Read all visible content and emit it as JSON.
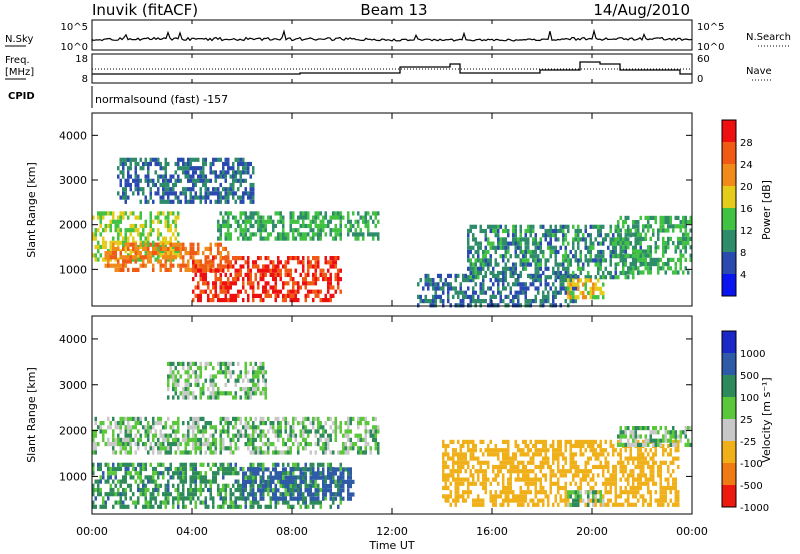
{
  "header": {
    "station": "Inuvik (fitACF)",
    "beam": "Beam 13",
    "date": "14/Aug/2010"
  },
  "nsky_panel": {
    "label": "N.Sky",
    "right_label": "N.Search",
    "left_ticks": [
      "10^5",
      "10^0"
    ],
    "right_ticks": [
      "10^5",
      "10^0"
    ]
  },
  "freq_panel": {
    "label_line1": "Freq.",
    "label_line2": "[MHz]",
    "left_ticks": [
      "18",
      "8"
    ],
    "right_ticks": [
      "60",
      "0"
    ],
    "right_label": "Nave"
  },
  "cpid_panel": {
    "label": "CPID",
    "text": "normalsound (fast) -157"
  },
  "x_axis": {
    "ticks": [
      "00:00",
      "04:00",
      "08:00",
      "12:00",
      "16:00",
      "20:00",
      "00:00"
    ],
    "label": "Time UT"
  },
  "power_panel": {
    "ylabel": "Slant Range [km]",
    "yticks": [
      "4000",
      "3000",
      "2000",
      "1000"
    ],
    "colorbar_label": "Power [dB]",
    "colorbar_ticks": [
      "28",
      "24",
      "20",
      "16",
      "12",
      "8",
      "4"
    ],
    "colors": [
      "#0a14f0",
      "#2a4ab0",
      "#2f8c6a",
      "#42c242",
      "#e6cc1a",
      "#f08a1a",
      "#f05a14",
      "#ee1010"
    ]
  },
  "velocity_panel": {
    "ylabel": "Slant Range [km]",
    "yticks": [
      "4000",
      "3000",
      "2000",
      "1000"
    ],
    "colorbar_label": "Velocity [m s⁻¹]",
    "colorbar_ticks": [
      "1000",
      "500",
      "100",
      "25",
      "-25",
      "-100",
      "-500",
      "-1000"
    ],
    "colors": [
      "#1a28c8",
      "#2e5aa8",
      "#2e8a5a",
      "#5ac83a",
      "#c8c8c8",
      "#f0b01a",
      "#f07a14",
      "#ee1a10"
    ]
  },
  "chart_data": [
    {
      "type": "heatmap",
      "title": "Power",
      "xlabel": "Time UT",
      "ylabel": "Slant Range [km]",
      "xlim_hours": [
        0,
        24
      ],
      "ylim_km": [
        180,
        4500
      ],
      "colorbar": "Power [dB]",
      "colorbar_range": [
        0,
        32
      ],
      "regions": [
        {
          "t": [
            0.0,
            3.5
          ],
          "r": [
            1200,
            2300
          ],
          "value": 16
        },
        {
          "t": [
            0.5,
            5.5
          ],
          "r": [
            1000,
            1600
          ],
          "value": 24
        },
        {
          "t": [
            4.0,
            10.0
          ],
          "r": [
            300,
            1300
          ],
          "value": 28
        },
        {
          "t": [
            1.0,
            6.5
          ],
          "r": [
            2500,
            3500
          ],
          "value": 8
        },
        {
          "t": [
            5.0,
            11.5
          ],
          "r": [
            1700,
            2300
          ],
          "value": 12
        },
        {
          "t": [
            13.0,
            19.5
          ],
          "r": [
            200,
            900
          ],
          "value": 8
        },
        {
          "t": [
            15.0,
            22.0
          ],
          "r": [
            800,
            2000
          ],
          "value": 10
        },
        {
          "t": [
            19.0,
            20.5
          ],
          "r": [
            400,
            800
          ],
          "value": 18
        },
        {
          "t": [
            21.0,
            24.0
          ],
          "r": [
            900,
            2200
          ],
          "value": 12
        }
      ]
    },
    {
      "type": "heatmap",
      "title": "Velocity",
      "xlabel": "Time UT",
      "ylabel": "Slant Range [km]",
      "xlim_hours": [
        0,
        24
      ],
      "ylim_km": [
        180,
        4500
      ],
      "colorbar": "Velocity [m s⁻¹]",
      "colorbar_range": [
        -1000,
        1000
      ],
      "regions": [
        {
          "t": [
            0.0,
            11.5
          ],
          "r": [
            1500,
            2300
          ],
          "value": 0
        },
        {
          "t": [
            0.0,
            10.0
          ],
          "r": [
            300,
            1300
          ],
          "value": 50
        },
        {
          "t": [
            6.0,
            10.5
          ],
          "r": [
            500,
            1200
          ],
          "value": 150
        },
        {
          "t": [
            3.0,
            7.0
          ],
          "r": [
            2700,
            3500
          ],
          "value": 0
        },
        {
          "t": [
            14.0,
            23.5
          ],
          "r": [
            400,
            1800
          ],
          "value": -300
        },
        {
          "t": [
            19.0,
            20.5
          ],
          "r": [
            400,
            700
          ],
          "value": 0
        },
        {
          "t": [
            21.0,
            24.0
          ],
          "r": [
            1700,
            2100
          ],
          "value": 0
        }
      ]
    }
  ]
}
